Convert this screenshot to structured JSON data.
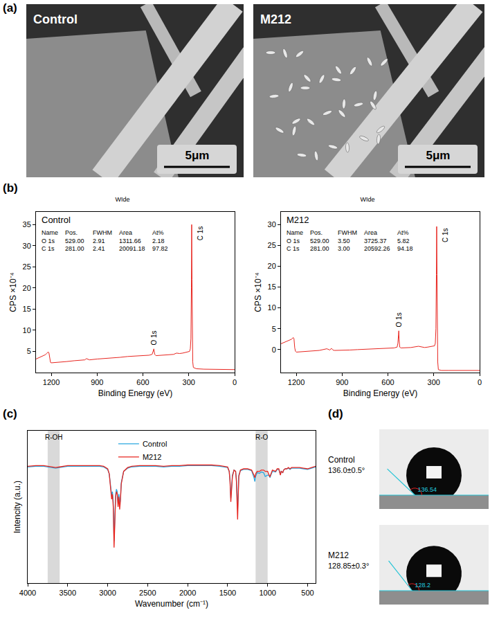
{
  "figure": {
    "panel_labels": [
      "(a)",
      "(b)",
      "(c)",
      "(d)"
    ],
    "sem_images": [
      {
        "label": "Control",
        "scale_bar": "5μm"
      },
      {
        "label": "M212",
        "scale_bar": "5μm"
      }
    ],
    "contact_angle": [
      {
        "name": "Control",
        "angle": "136.0±0.5°",
        "measured": 136.54
      },
      {
        "name": "M212",
        "angle": "128.85±0.3°",
        "measured": 128.2
      }
    ]
  },
  "chart_data": [
    {
      "type": "line",
      "title": "WIde",
      "subtitle": "Control",
      "table": {
        "header": [
          "Name",
          "Pos.",
          "FWHM",
          "Area",
          "At%"
        ],
        "rows": [
          [
            "O 1s",
            "529.00",
            "2.91",
            "1311.66",
            "2.18"
          ],
          [
            "C 1s",
            "281.00",
            "2.41",
            "20091.18",
            "97.82"
          ]
        ]
      },
      "x_label": "Binding Energy (eV)",
      "y_label": "CPS ×10⁻⁴",
      "x": [
        1300,
        1280,
        1260,
        1240,
        1230,
        1220,
        1215,
        1210,
        1205,
        1200,
        1150,
        1100,
        1050,
        1000,
        980,
        970,
        960,
        950,
        900,
        850,
        800,
        750,
        700,
        650,
        600,
        560,
        540,
        535,
        531,
        529,
        527,
        523,
        515,
        480,
        450,
        400,
        380,
        360,
        340,
        320,
        300,
        295,
        290,
        286,
        283,
        281,
        279,
        277,
        274,
        270,
        250,
        200,
        150,
        100,
        50,
        0
      ],
      "values": [
        3.2,
        3.5,
        3.8,
        4.2,
        4.5,
        4.9,
        4.6,
        3.0,
        2.4,
        2.3,
        2.4,
        2.6,
        2.8,
        2.9,
        3.0,
        3.3,
        3.1,
        3.0,
        3.2,
        3.3,
        3.5,
        3.6,
        3.8,
        3.9,
        4.0,
        4.1,
        4.3,
        4.7,
        5.3,
        5.6,
        4.9,
        4.3,
        4.0,
        4.1,
        4.2,
        4.3,
        4.6,
        4.5,
        4.6,
        4.8,
        4.9,
        5.0,
        5.6,
        8,
        20,
        35,
        22,
        8,
        2.5,
        1.2,
        0.9,
        0.8,
        0.8,
        0.7,
        0.7,
        0.7
      ],
      "color": "#e8251f",
      "xlim": [
        1300,
        0
      ],
      "xticks": [
        1200,
        900,
        600,
        300,
        0
      ],
      "ylim": [
        0,
        38
      ],
      "yticks": [
        5,
        10,
        15,
        20,
        25,
        30,
        35
      ],
      "annotations": [
        {
          "text": "O 1s",
          "x": 529
        },
        {
          "text": "C 1s",
          "x": 281
        }
      ]
    },
    {
      "type": "line",
      "title": "WIde",
      "subtitle": "M212",
      "table": {
        "header": [
          "Name",
          "Pos.",
          "FWHM",
          "Area",
          "At%"
        ],
        "rows": [
          [
            "O 1s",
            "529.00",
            "3.50",
            "3725.37",
            "5.82"
          ],
          [
            "C 1s",
            "281.00",
            "3.00",
            "20592.26",
            "94.18"
          ]
        ]
      },
      "x_label": "Binding Energy (eV)",
      "y_label": "CPS ×10⁻⁴",
      "x": [
        1300,
        1280,
        1260,
        1240,
        1230,
        1220,
        1215,
        1210,
        1205,
        1200,
        1150,
        1100,
        1050,
        1000,
        980,
        970,
        960,
        950,
        900,
        850,
        800,
        750,
        700,
        650,
        600,
        560,
        540,
        535,
        531,
        529,
        527,
        523,
        515,
        480,
        450,
        400,
        380,
        360,
        340,
        320,
        300,
        295,
        290,
        286,
        283,
        281,
        279,
        277,
        274,
        270,
        250,
        200,
        150,
        100,
        50,
        0
      ],
      "values": [
        1.4,
        1.7,
        2.0,
        2.3,
        2.5,
        2.9,
        2.6,
        0.4,
        -0.4,
        -0.6,
        -0.5,
        -0.4,
        -0.2,
        0.2,
        -0.1,
        0.3,
        -0.1,
        -0.2,
        -0.2,
        -0.1,
        0,
        0.1,
        0.1,
        0.2,
        0.3,
        0.4,
        0.6,
        1.5,
        3.5,
        4.5,
        2.5,
        0.6,
        0.4,
        0.4,
        0.5,
        0.8,
        0.6,
        0.5,
        0.6,
        0.7,
        0.8,
        0.9,
        1.5,
        5,
        18,
        29.5,
        18,
        5,
        -3,
        -4.8,
        -5,
        -5,
        -5,
        -5,
        -5,
        -5
      ],
      "color": "#e8251f",
      "xlim": [
        1300,
        0
      ],
      "xticks": [
        1200,
        900,
        600,
        300,
        0
      ],
      "ylim": [
        -5.5,
        33
      ],
      "yticks": [
        0,
        5,
        10,
        15,
        20,
        25,
        30
      ],
      "annotations": [
        {
          "text": "O 1s",
          "x": 529
        },
        {
          "text": "C 1s",
          "x": 281
        }
      ]
    },
    {
      "type": "line",
      "x_label": "Wavenumber (cm⁻¹)",
      "y_label": "Intencity (a.u.)",
      "x": [
        4000,
        3900,
        3800,
        3750,
        3700,
        3650,
        3600,
        3550,
        3500,
        3400,
        3300,
        3200,
        3100,
        3050,
        3000,
        2980,
        2960,
        2950,
        2940,
        2930,
        2920,
        2910,
        2900,
        2890,
        2880,
        2870,
        2860,
        2850,
        2840,
        2830,
        2800,
        2750,
        2700,
        2600,
        2500,
        2400,
        2300,
        2200,
        2100,
        2000,
        1900,
        1800,
        1700,
        1600,
        1500,
        1480,
        1470,
        1460,
        1450,
        1440,
        1420,
        1400,
        1390,
        1380,
        1375,
        1370,
        1360,
        1340,
        1300,
        1250,
        1200,
        1170,
        1160,
        1150,
        1130,
        1100,
        1080,
        1050,
        1030,
        1000,
        990,
        975,
        970,
        960,
        940,
        900,
        880,
        860,
        845,
        840,
        830,
        810,
        800,
        780,
        760,
        740,
        720,
        700,
        650,
        600,
        550,
        500,
        450,
        400
      ],
      "series": [
        {
          "name": "Control",
          "color": "#2aa7e0",
          "values": [
            91.5,
            92,
            92,
            91.5,
            91,
            90.5,
            91,
            91.5,
            92,
            92,
            92,
            92,
            92,
            91.5,
            89.5,
            86,
            74,
            69,
            72,
            64,
            33,
            49,
            70,
            74,
            72,
            63,
            70,
            61,
            67,
            79,
            88,
            90.5,
            91.5,
            92,
            92,
            92,
            91.5,
            92,
            92,
            92.5,
            92.5,
            92.5,
            92.5,
            92,
            91,
            88,
            81,
            67,
            74,
            85,
            89,
            88,
            82,
            65,
            58,
            66,
            85,
            88.5,
            89.5,
            89.5,
            88.5,
            83,
            80,
            84,
            87,
            86.5,
            87.5,
            87,
            84,
            85,
            85,
            84,
            83,
            85,
            88,
            87.5,
            89.5,
            89.5,
            86,
            85.5,
            88,
            87,
            89,
            90,
            90,
            90.5,
            89.5,
            90.5,
            90.5,
            90.5,
            90,
            89.5,
            90.5,
            91.5
          ]
        },
        {
          "name": "M212",
          "color": "#e8251f",
          "values": [
            92,
            92.5,
            92.5,
            92,
            91.5,
            91,
            91.5,
            92,
            92.5,
            92.5,
            92.5,
            92.5,
            92.5,
            92,
            90,
            86,
            72,
            66,
            70,
            60,
            28,
            45,
            68,
            72,
            70,
            60,
            68,
            58,
            65,
            78,
            88,
            91,
            92,
            92.5,
            92.5,
            92.5,
            92,
            92.5,
            92.5,
            93,
            93,
            93,
            93,
            92.5,
            91.5,
            88,
            80,
            64,
            72,
            84,
            89,
            88,
            80,
            60,
            50,
            62,
            84,
            89,
            90,
            90,
            89,
            85,
            83,
            86,
            88,
            88,
            89,
            89,
            88,
            88,
            86,
            84,
            84,
            86,
            89,
            88,
            90,
            90,
            86,
            85,
            88,
            87,
            89,
            90,
            90,
            91,
            90,
            91,
            91,
            91,
            90.5,
            90,
            91,
            92
          ]
        }
      ],
      "xlim": [
        4000,
        400
      ],
      "xticks": [
        4000,
        3500,
        3000,
        2500,
        2000,
        1500,
        1000,
        500
      ],
      "ylim": [
        0,
        120
      ],
      "tick_labels": "x",
      "legend": "top",
      "bands": [
        {
          "label": "R-OH",
          "x0": 3750,
          "x1": 3600
        },
        {
          "label": "R-O",
          "x0": 1150,
          "x1": 1000
        }
      ]
    }
  ]
}
